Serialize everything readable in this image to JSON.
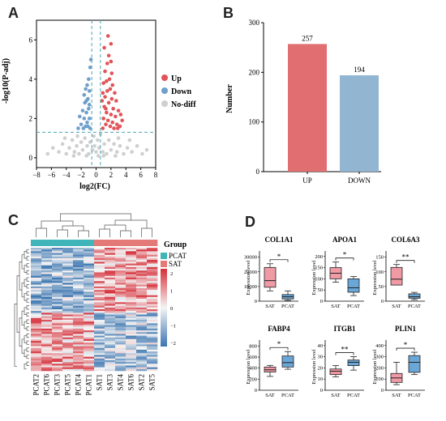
{
  "chart_data": [
    {
      "id": "A",
      "panel_letter": "A",
      "type": "scatter",
      "title": "",
      "xlabel": "log2(FC)",
      "ylabel": "-log10(P-adj)",
      "xlim": [
        -8,
        8
      ],
      "ylim": [
        -0.5,
        7
      ],
      "x_ticks": [
        -8,
        -6,
        -4,
        -2,
        0,
        2,
        4,
        6,
        8
      ],
      "y_ticks": [
        0,
        2,
        4,
        6
      ],
      "thresholds": {
        "x": [
          -0.58,
          0.58
        ],
        "y": 1.3
      },
      "legend": [
        {
          "name": "Up",
          "color": "#e1545a"
        },
        {
          "name": "Down",
          "color": "#6f9fcb"
        },
        {
          "name": "No-diff",
          "color": "#cfcfcf"
        }
      ],
      "series": [
        {
          "name": "Up",
          "color": "#e1545a",
          "points": [
            [
              0.9,
              1.5
            ],
            [
              1.0,
              2.0
            ],
            [
              1.1,
              2.6
            ],
            [
              1.2,
              3.1
            ],
            [
              1.3,
              1.7
            ],
            [
              1.4,
              2.3
            ],
            [
              1.5,
              3.4
            ],
            [
              1.6,
              1.9
            ],
            [
              1.7,
              2.8
            ],
            [
              1.8,
              4.0
            ],
            [
              1.9,
              1.6
            ],
            [
              2.0,
              2.2
            ],
            [
              2.1,
              3.0
            ],
            [
              2.2,
              1.8
            ],
            [
              2.3,
              2.5
            ],
            [
              2.4,
              1.5
            ],
            [
              2.6,
              2.1
            ],
            [
              2.8,
              1.7
            ],
            [
              3.0,
              2.4
            ],
            [
              3.2,
              1.6
            ],
            [
              1.0,
              3.8
            ],
            [
              1.2,
              4.4
            ],
            [
              1.5,
              4.8
            ],
            [
              1.7,
              5.2
            ],
            [
              2.0,
              4.9
            ],
            [
              2.2,
              3.7
            ],
            [
              1.1,
              5.6
            ],
            [
              1.6,
              6.2
            ],
            [
              2.0,
              5.8
            ],
            [
              2.5,
              3.3
            ],
            [
              2.7,
              2.9
            ],
            [
              3.5,
              1.9
            ],
            [
              0.8,
              2.9
            ],
            [
              1.4,
              3.9
            ],
            [
              1.9,
              3.5
            ],
            [
              2.9,
              1.5
            ],
            [
              3.3,
              2.2
            ],
            [
              1.3,
              2.5
            ],
            [
              0.9,
              3.3
            ],
            [
              2.1,
              4.3
            ]
          ]
        },
        {
          "name": "Down",
          "color": "#6f9fcb",
          "points": [
            [
              -0.8,
              1.5
            ],
            [
              -0.9,
              2.0
            ],
            [
              -1.0,
              2.5
            ],
            [
              -1.1,
              3.0
            ],
            [
              -1.2,
              1.8
            ],
            [
              -1.3,
              2.3
            ],
            [
              -1.4,
              1.6
            ],
            [
              -1.5,
              2.8
            ],
            [
              -1.6,
              2.0
            ],
            [
              -1.7,
              1.5
            ],
            [
              -1.8,
              2.4
            ],
            [
              -2.0,
              1.7
            ],
            [
              -2.2,
              2.1
            ],
            [
              -0.9,
              3.4
            ],
            [
              -1.0,
              4.0
            ],
            [
              -1.2,
              3.7
            ],
            [
              -0.8,
              4.6
            ],
            [
              -1.1,
              1.6
            ],
            [
              -1.3,
              2.9
            ],
            [
              -2.4,
              1.5
            ],
            [
              -0.7,
              5.0
            ],
            [
              -1.6,
              3.2
            ],
            [
              -0.9,
              2.7
            ],
            [
              -1.4,
              3.5
            ]
          ]
        },
        {
          "name": "No-diff",
          "color": "#cfcfcf",
          "points": [
            [
              -6.5,
              0.2
            ],
            [
              -5.8,
              0.5
            ],
            [
              -5.0,
              0.3
            ],
            [
              -4.5,
              0.7
            ],
            [
              -4.0,
              0.2
            ],
            [
              -3.6,
              0.5
            ],
            [
              -3.2,
              0.9
            ],
            [
              -2.9,
              0.3
            ],
            [
              -2.6,
              0.6
            ],
            [
              -2.3,
              0.2
            ],
            [
              -2.0,
              0.8
            ],
            [
              -1.8,
              0.4
            ],
            [
              -1.5,
              1.0
            ],
            [
              -1.2,
              0.6
            ],
            [
              -1.0,
              0.2
            ],
            [
              -0.8,
              0.8
            ],
            [
              -0.5,
              0.4
            ],
            [
              -0.3,
              1.1
            ],
            [
              0.0,
              0.3
            ],
            [
              0.2,
              0.9
            ],
            [
              0.4,
              0.5
            ],
            [
              0.6,
              1.2
            ],
            [
              0.9,
              0.3
            ],
            [
              1.1,
              0.7
            ],
            [
              1.4,
              0.2
            ],
            [
              1.7,
              0.9
            ],
            [
              2.0,
              0.4
            ],
            [
              2.4,
              0.7
            ],
            [
              2.8,
              0.3
            ],
            [
              3.2,
              0.6
            ],
            [
              3.7,
              0.2
            ],
            [
              4.2,
              0.5
            ],
            [
              4.8,
              0.3
            ],
            [
              5.5,
              0.6
            ],
            [
              6.2,
              0.2
            ],
            [
              6.8,
              0.4
            ],
            [
              -3.0,
              0.1
            ],
            [
              -1.3,
              0.1
            ],
            [
              1.0,
              0.1
            ],
            [
              2.6,
              0.1
            ],
            [
              -0.2,
              0.6
            ],
            [
              0.3,
              0.1
            ],
            [
              -2.5,
              1.1
            ],
            [
              3.0,
              1.0
            ],
            [
              -4.2,
              1.0
            ],
            [
              4.5,
              0.9
            ]
          ]
        }
      ]
    },
    {
      "id": "B",
      "panel_letter": "B",
      "type": "bar",
      "title": "",
      "xlabel": "",
      "ylabel": "Number",
      "categories": [
        "UP",
        "DOWN"
      ],
      "values": [
        257,
        194
      ],
      "colors": [
        "#e16e71",
        "#92b5d2"
      ],
      "data_labels": [
        "257",
        "194"
      ],
      "ylim": [
        0,
        300
      ],
      "y_ticks": [
        0,
        100,
        200,
        300
      ]
    },
    {
      "id": "C",
      "panel_letter": "C",
      "type": "heatmap",
      "title": "",
      "columns": [
        "PCAT2",
        "PCAT6",
        "PCAT3",
        "PCAT5",
        "PCAT4",
        "PCAT1",
        "SAT1",
        "SAT3",
        "SAT4",
        "SAT6",
        "SAT2",
        "SAT5"
      ],
      "groups": [
        "PCAT",
        "PCAT",
        "PCAT",
        "PCAT",
        "PCAT",
        "PCAT",
        "SAT",
        "SAT",
        "SAT",
        "SAT",
        "SAT",
        "SAT"
      ],
      "legend_title": "Group",
      "group_legend": [
        {
          "name": "PCAT",
          "color": "#3fb5b9"
        },
        {
          "name": "SAT",
          "color": "#e47a78"
        }
      ],
      "color_scale": {
        "ticks": [
          2,
          1,
          0,
          -1,
          -2
        ],
        "high": "#d62f39",
        "mid": "#f5f5f5",
        "low": "#3b75b0"
      },
      "row_count": 451
    },
    {
      "id": "D",
      "panel_letter": "D",
      "type": "box",
      "title": "",
      "ylabel": "Expression level",
      "categories": [
        "SAT",
        "PCAT"
      ],
      "colors": {
        "SAT": "#ef9aa4",
        "PCAT": "#6aa6d6"
      },
      "plots": [
        {
          "gene": "COL1A1",
          "sig": "*",
          "y_ticks": [
            0,
            10000,
            20000,
            30000
          ],
          "ylim": [
            0,
            32000
          ],
          "SAT": {
            "min": 7000,
            "q1": 9500,
            "median": 14000,
            "q3": 23000,
            "max": 25500
          },
          "PCAT": {
            "min": 500,
            "q1": 1500,
            "median": 3000,
            "q3": 4500,
            "max": 7000
          }
        },
        {
          "gene": "APOA1",
          "sig": "*",
          "y_ticks": [
            0,
            50,
            100,
            150,
            200
          ],
          "ylim": [
            0,
            210
          ],
          "SAT": {
            "min": 85,
            "q1": 100,
            "median": 125,
            "q3": 150,
            "max": 175
          },
          "PCAT": {
            "min": 25,
            "q1": 40,
            "median": 60,
            "q3": 100,
            "max": 110
          }
        },
        {
          "gene": "COL6A3",
          "sig": "**",
          "y_ticks": [
            0,
            50,
            100,
            150
          ],
          "ylim": [
            0,
            160
          ],
          "SAT": {
            "min": 55,
            "q1": 55,
            "median": 75,
            "q3": 115,
            "max": 125
          },
          "PCAT": {
            "min": 5,
            "q1": 10,
            "median": 15,
            "q3": 25,
            "max": 30
          }
        },
        {
          "gene": "FABP4",
          "sig": "*",
          "y_ticks": [
            0,
            200,
            400,
            600,
            800
          ],
          "ylim": [
            0,
            850
          ],
          "SAT": {
            "min": 250,
            "q1": 330,
            "median": 370,
            "q3": 420,
            "max": 450
          },
          "PCAT": {
            "min": 380,
            "q1": 420,
            "median": 500,
            "q3": 620,
            "max": 700
          }
        },
        {
          "gene": "ITGB1",
          "sig": "**",
          "y_ticks": [
            0,
            10,
            20,
            30,
            40
          ],
          "ylim": [
            0,
            42
          ],
          "SAT": {
            "min": 12,
            "q1": 14,
            "median": 17,
            "q3": 19,
            "max": 22
          },
          "PCAT": {
            "min": 18,
            "q1": 22,
            "median": 25,
            "q3": 27,
            "max": 30
          }
        },
        {
          "gene": "PLIN1",
          "sig": "*",
          "y_ticks": [
            0,
            100,
            200,
            300,
            400
          ],
          "ylim": [
            0,
            420
          ],
          "SAT": {
            "min": 50,
            "q1": 70,
            "median": 110,
            "q3": 150,
            "max": 250
          },
          "PCAT": {
            "min": 140,
            "q1": 160,
            "median": 250,
            "q3": 310,
            "max": 340
          }
        }
      ]
    }
  ]
}
